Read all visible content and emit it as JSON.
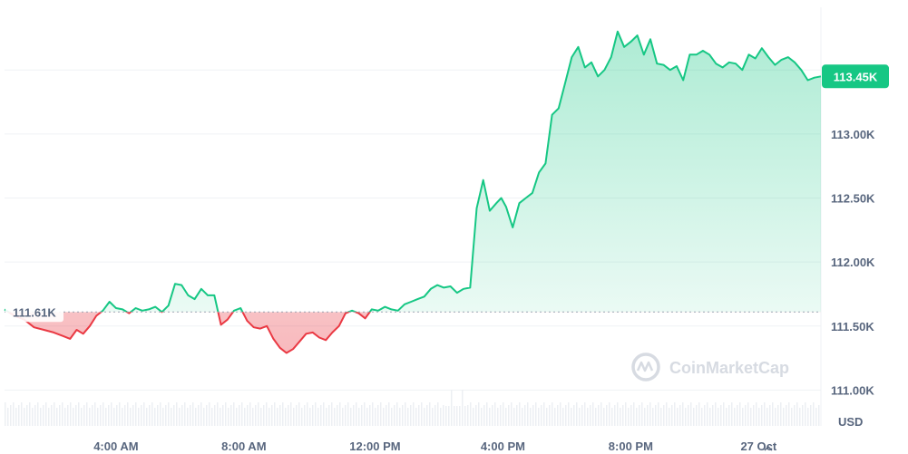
{
  "chart_data": {
    "type": "area",
    "ylabel": "USD",
    "ylim": [
      110.72,
      113.99
    ],
    "yticks": [
      {
        "value": 113.0,
        "label": "113.00K"
      },
      {
        "value": 112.5,
        "label": "112.50K"
      },
      {
        "value": 112.0,
        "label": "112.00K"
      },
      {
        "value": 111.5,
        "label": "111.50K"
      },
      {
        "value": 111.0,
        "label": "111.00K"
      }
    ],
    "xticks": [
      "4:00 AM",
      "8:00 AM",
      "12:00 PM",
      "4:00 PM",
      "8:00 PM",
      "27 Oct"
    ],
    "reference": {
      "value": 111.61,
      "label": "111.61K"
    },
    "current": {
      "value": 113.45,
      "label": "113.45K"
    },
    "colors": {
      "up": "#16c784",
      "down": "#ea3943",
      "tag": "#16c784"
    },
    "grid": true,
    "series": [
      {
        "x_hours": [
          0,
          0.3,
          0.6,
          0.9,
          1.2,
          1.5,
          1.8,
          2.0,
          2.2,
          2.4,
          2.6,
          2.8,
          3.0,
          3.2,
          3.4,
          3.6,
          3.8,
          4.0,
          4.2,
          4.4,
          4.6,
          4.8,
          5.0,
          5.2,
          5.4,
          5.6,
          5.8,
          6.0,
          6.2,
          6.4,
          6.6,
          6.8,
          7.0,
          7.2,
          7.4,
          7.6,
          7.8,
          8.0,
          8.2,
          8.4,
          8.6,
          8.8,
          9.0,
          9.2,
          9.4,
          9.6,
          9.8,
          10.0,
          10.2,
          10.4,
          10.6,
          10.8,
          11.0,
          11.2,
          11.4,
          11.6,
          11.8,
          12.0,
          12.2,
          12.4,
          12.6,
          12.8,
          13.0,
          13.2,
          13.4,
          13.6,
          13.8,
          14.0,
          14.2,
          14.4,
          14.6,
          14.8,
          15.0,
          15.15,
          15.3,
          15.5,
          15.7,
          15.9,
          16.1,
          16.3,
          16.5,
          16.7,
          16.9,
          17.1,
          17.3,
          17.5,
          17.7,
          17.9,
          18.1,
          18.3,
          18.5,
          18.7,
          18.9,
          19.1,
          19.3,
          19.5,
          19.7,
          19.9,
          20.1,
          20.3,
          20.5,
          20.7,
          20.9,
          21.1,
          21.3,
          21.5,
          21.7,
          21.9,
          22.1,
          22.3,
          22.5,
          22.7,
          22.9,
          23.1,
          23.3,
          23.5,
          23.7,
          23.9,
          24.1,
          24.3,
          24.5,
          24.7,
          24.9
        ],
        "values": [
          111.63,
          111.58,
          111.55,
          111.49,
          111.47,
          111.45,
          111.42,
          111.4,
          111.47,
          111.44,
          111.5,
          111.58,
          111.62,
          111.69,
          111.64,
          111.63,
          111.6,
          111.64,
          111.62,
          111.63,
          111.65,
          111.61,
          111.66,
          111.83,
          111.82,
          111.74,
          111.71,
          111.79,
          111.74,
          111.74,
          111.51,
          111.55,
          111.62,
          111.64,
          111.54,
          111.49,
          111.48,
          111.5,
          111.4,
          111.33,
          111.29,
          111.32,
          111.38,
          111.44,
          111.45,
          111.41,
          111.39,
          111.45,
          111.5,
          111.6,
          111.62,
          111.6,
          111.56,
          111.63,
          111.62,
          111.65,
          111.63,
          111.62,
          111.67,
          111.69,
          111.71,
          111.73,
          111.79,
          111.82,
          111.8,
          111.81,
          111.76,
          111.79,
          111.8,
          112.42,
          112.64,
          112.4,
          112.46,
          112.5,
          112.43,
          112.27,
          112.46,
          112.5,
          112.54,
          112.7,
          112.77,
          113.15,
          113.2,
          113.4,
          113.6,
          113.68,
          113.52,
          113.56,
          113.45,
          113.5,
          113.6,
          113.8,
          113.68,
          113.72,
          113.77,
          113.62,
          113.74,
          113.55,
          113.54,
          113.5,
          113.53,
          113.42,
          113.62,
          113.62,
          113.65,
          113.62,
          113.55,
          113.52,
          113.56,
          113.55,
          113.5,
          113.62,
          113.59,
          113.67,
          113.6,
          113.54,
          113.58,
          113.6,
          113.56,
          113.5,
          113.42,
          113.44,
          113.45
        ]
      }
    ]
  },
  "watermark": {
    "text": "CoinMarketCap",
    "icon": "coinmarketcap-logo-icon"
  }
}
